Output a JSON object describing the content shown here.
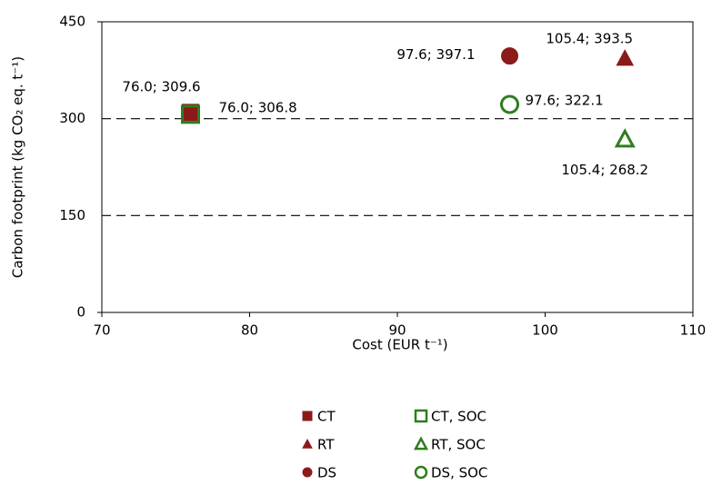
{
  "chart_data": {
    "type": "scatter",
    "x_label": "Cost (EUR t⁻¹)",
    "y_label": "Carbon footprint (kg CO₂ eq. t⁻¹)",
    "xlim": [
      70,
      110
    ],
    "xticks": [
      70,
      80,
      90,
      100,
      110
    ],
    "ylim": [
      0,
      450
    ],
    "yticks": [
      0,
      150,
      300,
      450
    ],
    "grid": true,
    "series": [
      {
        "name": "CT",
        "marker": "square",
        "filled": true,
        "color": "#8b1a1a",
        "x": [
          76.0
        ],
        "values": [
          309.6
        ],
        "value_labels": [
          "76.0; 309.6"
        ]
      },
      {
        "name": "RT",
        "marker": "triangle",
        "filled": true,
        "color": "#8b1a1a",
        "x": [
          105.4
        ],
        "values": [
          393.5
        ],
        "value_labels": [
          "105.4; 393.5"
        ]
      },
      {
        "name": "DS",
        "marker": "circle",
        "filled": true,
        "color": "#8b1a1a",
        "x": [
          97.6
        ],
        "values": [
          397.1
        ],
        "value_labels": [
          "97.6; 397.1"
        ]
      },
      {
        "name": "CT, SOC",
        "marker": "square",
        "filled": false,
        "color": "#2e7d1e",
        "x": [
          76.0
        ],
        "values": [
          306.8
        ],
        "value_labels": [
          "76.0; 306.8"
        ]
      },
      {
        "name": "RT, SOC",
        "marker": "triangle",
        "filled": false,
        "color": "#2e7d1e",
        "x": [
          105.4
        ],
        "values": [
          268.2
        ],
        "value_labels": [
          "105.4; 268.2"
        ]
      },
      {
        "name": "DS, SOC",
        "marker": "circle",
        "filled": false,
        "color": "#2e7d1e",
        "x": [
          97.6
        ],
        "values": [
          322.1
        ],
        "value_labels": [
          "97.6; 322.1"
        ]
      }
    ]
  }
}
